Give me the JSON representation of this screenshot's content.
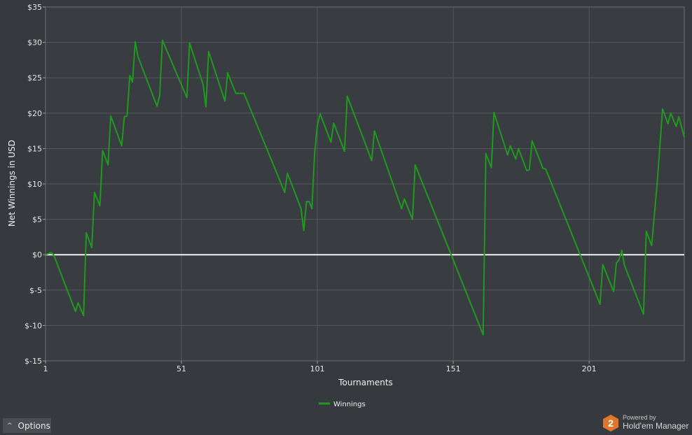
{
  "chart_data": {
    "type": "line",
    "title": "",
    "xlabel": "Tournaments",
    "ylabel": "Net Winnings in USD",
    "xlim": [
      1,
      236
    ],
    "ylim": [
      -15,
      35
    ],
    "x_ticks": [
      1,
      51,
      101,
      151,
      201
    ],
    "y_ticks": [
      {
        "value": 35,
        "label": "$35"
      },
      {
        "value": 30,
        "label": "$30"
      },
      {
        "value": 25,
        "label": "$25"
      },
      {
        "value": 20,
        "label": "$20"
      },
      {
        "value": 15,
        "label": "$15"
      },
      {
        "value": 10,
        "label": "$10"
      },
      {
        "value": 5,
        "label": "$5"
      },
      {
        "value": 0,
        "label": "$0"
      },
      {
        "value": -5,
        "label": "$-5"
      },
      {
        "value": -10,
        "label": "$-10"
      },
      {
        "value": -15,
        "label": "$-15"
      }
    ],
    "grid": true,
    "zero_line": true,
    "legend_position": "bottom-center",
    "series": [
      {
        "name": "Winnings",
        "color": "#1f9a1f",
        "points": [
          [
            1,
            0
          ],
          [
            3,
            0.3
          ],
          [
            4,
            0
          ],
          [
            12,
            -8
          ],
          [
            13,
            -6.8
          ],
          [
            15,
            -8.6
          ],
          [
            16,
            3.1
          ],
          [
            18,
            1
          ],
          [
            19,
            8.8
          ],
          [
            21,
            6.9
          ],
          [
            22,
            14.7
          ],
          [
            24,
            12.7
          ],
          [
            25,
            19.6
          ],
          [
            29,
            15.4
          ],
          [
            30,
            19.5
          ],
          [
            31,
            19.6
          ],
          [
            32,
            25.3
          ],
          [
            33,
            24.4
          ],
          [
            34,
            30.1
          ],
          [
            35,
            28
          ],
          [
            42,
            21
          ],
          [
            43,
            22.5
          ],
          [
            44,
            30.3
          ],
          [
            53,
            22.2
          ],
          [
            54,
            29.9
          ],
          [
            59,
            24
          ],
          [
            60,
            20.9
          ],
          [
            61,
            28.7
          ],
          [
            67,
            21.7
          ],
          [
            68,
            25.7
          ],
          [
            71,
            22.8
          ],
          [
            74,
            22.8
          ],
          [
            89,
            8.8
          ],
          [
            90,
            11.5
          ],
          [
            95,
            6.5
          ],
          [
            96,
            3.4
          ],
          [
            97,
            7.5
          ],
          [
            98,
            7.5
          ],
          [
            99,
            6.5
          ],
          [
            100,
            14.3
          ],
          [
            101,
            18.3
          ],
          [
            102,
            19.9
          ],
          [
            106,
            15.9
          ],
          [
            107,
            18.6
          ],
          [
            111,
            14.6
          ],
          [
            112,
            22.4
          ],
          [
            121,
            13.3
          ],
          [
            122,
            17.5
          ],
          [
            132,
            6.5
          ],
          [
            133,
            7.9
          ],
          [
            136,
            5
          ],
          [
            137,
            12.7
          ],
          [
            162,
            -11.3
          ],
          [
            163,
            14.3
          ],
          [
            165,
            12.3
          ],
          [
            166,
            20.1
          ],
          [
            171,
            14.1
          ],
          [
            172,
            15.4
          ],
          [
            174,
            13.5
          ],
          [
            175,
            15
          ],
          [
            178,
            11.9
          ],
          [
            179,
            12
          ],
          [
            180,
            16.1
          ],
          [
            184,
            12.2
          ],
          [
            185,
            12.1
          ],
          [
            205,
            -7
          ],
          [
            206,
            -1.4
          ],
          [
            210,
            -5.2
          ],
          [
            211,
            -1.2
          ],
          [
            212,
            -0.7
          ],
          [
            213,
            0.6
          ],
          [
            214,
            -1.5
          ],
          [
            221,
            -8.4
          ],
          [
            222,
            3.3
          ],
          [
            224,
            1.3
          ],
          [
            226,
            10
          ],
          [
            228,
            20.6
          ],
          [
            230,
            18.5
          ],
          [
            231,
            20
          ],
          [
            233,
            18.1
          ],
          [
            234,
            19.5
          ],
          [
            236,
            16.6
          ]
        ]
      }
    ]
  },
  "ui": {
    "options_label": "Options",
    "options_icon": "chevron-up-icon",
    "brand_powered": "Powered by",
    "brand_name": "Hold'em Manager",
    "brand_badge": "2",
    "brand_color": "#e0762b"
  }
}
